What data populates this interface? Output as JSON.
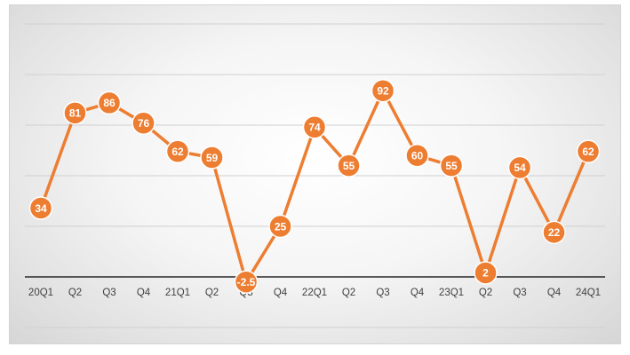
{
  "chart_data": {
    "type": "line",
    "categories": [
      "20Q1",
      "Q2",
      "Q3",
      "Q4",
      "21Q1",
      "Q2",
      "Q3",
      "Q4",
      "22Q1",
      "Q2",
      "Q3",
      "Q4",
      "23Q1",
      "Q2",
      "Q3",
      "Q4",
      "24Q1"
    ],
    "series": [
      {
        "values": [
          34,
          81,
          86,
          76,
          62,
          59,
          -2.5,
          25,
          74,
          55,
          92,
          60,
          55,
          2,
          54,
          22,
          62
        ],
        "labels": [
          "34",
          "81",
          "86",
          "76",
          "62",
          "59",
          "-2.5",
          "25",
          "74",
          "55",
          "92",
          "60",
          "55",
          "2",
          "54",
          "22",
          "62"
        ]
      }
    ],
    "ylim": [
      -25,
      125
    ],
    "gridlines": [
      -25,
      25,
      50,
      75,
      100,
      125
    ],
    "grid": true,
    "legend": false,
    "colors": {
      "line": "#ED7D31",
      "marker": "#ED7D31",
      "marker_border": "#ffffff",
      "label_text": "#ffffff",
      "gridline": "#d0d0d0",
      "zero_axis": "#262626",
      "tick_text": "#404040"
    }
  }
}
